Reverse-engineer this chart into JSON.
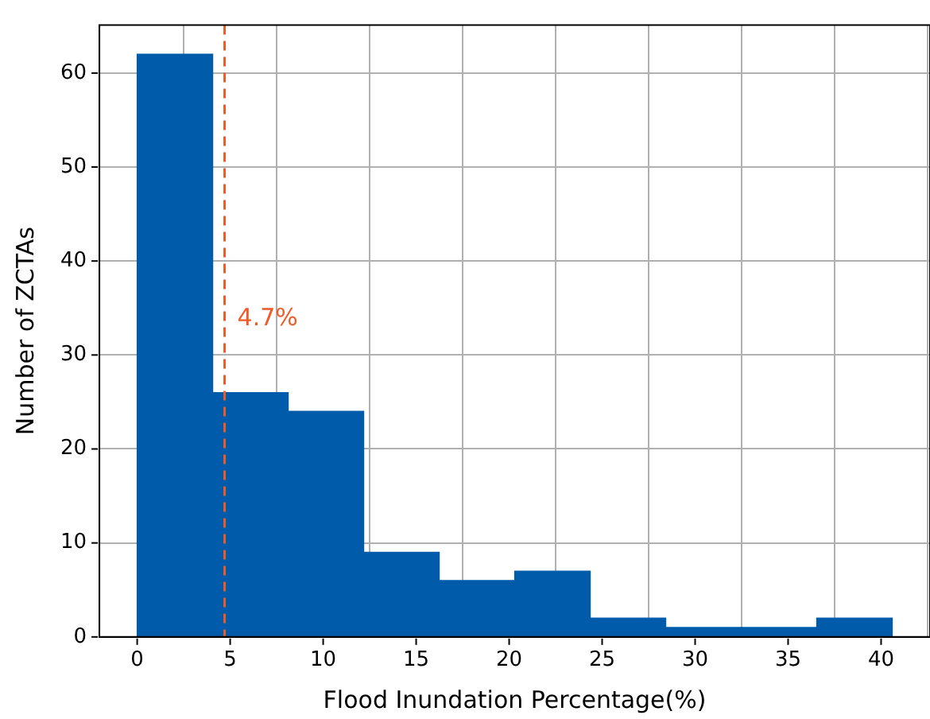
{
  "chart_data": {
    "type": "histogram",
    "xlabel": "Flood Inundation Percentage(%)",
    "ylabel": "Number of ZCTAs",
    "bins": [
      0,
      4.06,
      8.12,
      12.18,
      16.24,
      20.3,
      24.36,
      28.42,
      32.48,
      36.54,
      40.6
    ],
    "values": [
      62,
      26,
      24,
      9,
      6,
      7,
      2,
      1,
      1,
      2
    ],
    "color": "#005baa",
    "xlim": [
      -2.03,
      42.63
    ],
    "xticks": [
      0,
      5,
      10,
      15,
      20,
      25,
      30,
      35,
      40
    ],
    "ylim": [
      0,
      65.1
    ],
    "yticks": [
      0,
      10,
      20,
      30,
      40,
      50,
      60
    ],
    "grid": true,
    "ref_lines": [
      {
        "axis": "x",
        "value": 4.7,
        "label": "4.7%",
        "color": "#f05a28",
        "line_style": "dashed"
      }
    ]
  }
}
